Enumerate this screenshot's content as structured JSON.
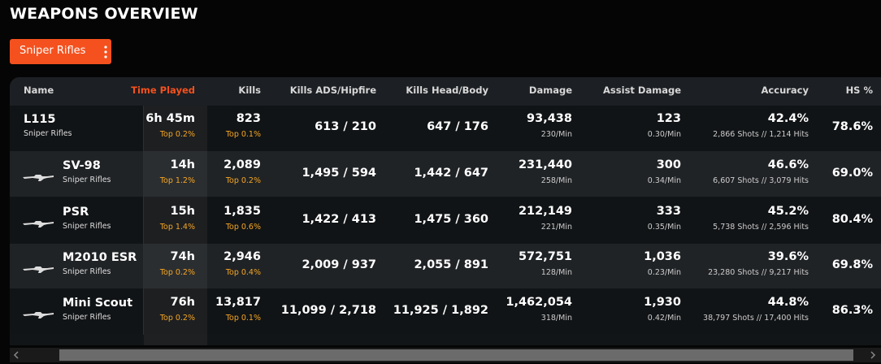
{
  "header": {
    "title": "WEAPONS OVERVIEW"
  },
  "filter": {
    "label": "Sniper Rifles"
  },
  "table": {
    "columns": [
      "Name",
      "Time Played",
      "Kills",
      "Kills ADS/Hipfire",
      "Kills Head/Body",
      "Damage",
      "Assist Damage",
      "Accuracy",
      "HS %"
    ],
    "rows": [
      [
        [
          "L115",
          "Sniper Rifles"
        ],
        [
          "6h 45m",
          "Top 0.2%"
        ],
        [
          "823",
          "Top 0.1%"
        ],
        [
          "613 / 210"
        ],
        [
          "647 / 176"
        ],
        [
          "93,438",
          "230/Min"
        ],
        [
          "123",
          "0.30/Min"
        ],
        [
          "42.4%",
          "2,866 Shots // 1,214 Hits"
        ],
        [
          "78.6%"
        ]
      ],
      [
        [
          "SV-98",
          "Sniper Rifles"
        ],
        [
          "14h",
          "Top 1.2%"
        ],
        [
          "2,089",
          "Top 0.2%"
        ],
        [
          "1,495 / 594"
        ],
        [
          "1,442 / 647"
        ],
        [
          "231,440",
          "258/Min"
        ],
        [
          "300",
          "0.34/Min"
        ],
        [
          "46.6%",
          "6,607 Shots // 3,079 Hits"
        ],
        [
          "69.0%"
        ]
      ],
      [
        [
          "PSR",
          "Sniper Rifles"
        ],
        [
          "15h",
          "Top 1.4%"
        ],
        [
          "1,835",
          "Top 0.6%"
        ],
        [
          "1,422 / 413"
        ],
        [
          "1,475 / 360"
        ],
        [
          "212,149",
          "221/Min"
        ],
        [
          "333",
          "0.35/Min"
        ],
        [
          "45.2%",
          "5,738 Shots // 2,596 Hits"
        ],
        [
          "80.4%"
        ]
      ],
      [
        [
          "M2010 ESR",
          "Sniper Rifles"
        ],
        [
          "74h",
          "Top 0.2%"
        ],
        [
          "2,946",
          "Top 0.4%"
        ],
        [
          "2,009 / 937"
        ],
        [
          "2,055 / 891"
        ],
        [
          "572,751",
          "128/Min"
        ],
        [
          "1,036",
          "0.23/Min"
        ],
        [
          "39.6%",
          "23,280 Shots // 9,217 Hits"
        ],
        [
          "69.8%"
        ]
      ],
      [
        [
          "Mini Scout",
          "Sniper Rifles"
        ],
        [
          "76h",
          "Top 0.2%"
        ],
        [
          "13,817",
          "Top 0.1%"
        ],
        [
          "11,099 / 2,718"
        ],
        [
          "11,925 / 1,892"
        ],
        [
          "1,462,054",
          "318/Min"
        ],
        [
          "1,930",
          "0.42/Min"
        ],
        [
          "44.8%",
          "38,797 Shots // 17,400 Hits"
        ],
        [
          "86.3%"
        ]
      ]
    ]
  }
}
